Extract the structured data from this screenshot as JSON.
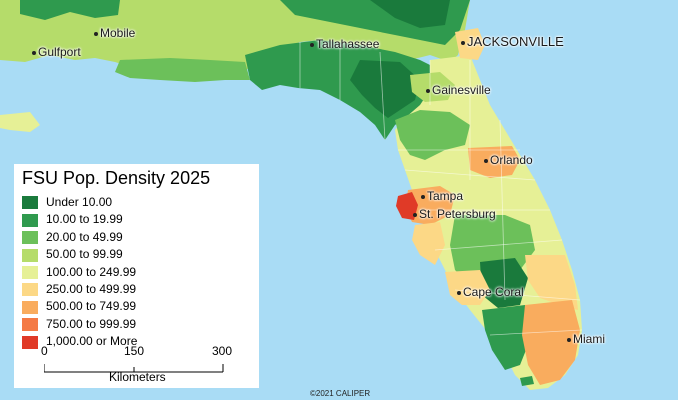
{
  "map": {
    "water_color": "#a9dcf5",
    "land_color": "#bfe27a",
    "cities": {
      "gulfport": "Gulfport",
      "mobile": "Mobile",
      "tallahassee": "Tallahassee",
      "jacksonville": "JACKSONVILLE",
      "gainesville": "Gainesville",
      "orlando": "Orlando",
      "tampa": "Tampa",
      "st_petersburg": "St. Petersburg",
      "cape_coral": "Cape Coral",
      "miami": "Miami"
    }
  },
  "legend": {
    "title": "FSU Pop. Density 2025",
    "items": [
      {
        "label": "Under 10.00",
        "color": "#1a7a3c"
      },
      {
        "label": "10.00 to 19.99",
        "color": "#2f9a4e"
      },
      {
        "label": "20.00 to 49.99",
        "color": "#6cc05a"
      },
      {
        "label": "50.00 to 99.99",
        "color": "#b5dc6a"
      },
      {
        "label": "100.00 to 249.99",
        "color": "#e6f096"
      },
      {
        "label": "250.00 to 499.99",
        "color": "#fcd886"
      },
      {
        "label": "500.00 to 749.99",
        "color": "#f9ac5e"
      },
      {
        "label": "750.00 to 999.99",
        "color": "#f47a45"
      },
      {
        "label": "1,000.00 or More",
        "color": "#e03a27"
      }
    ],
    "scale": {
      "ticks": [
        "0",
        "150",
        "300"
      ],
      "unit": "Kilometers"
    }
  },
  "credit": "©2021 CALIPER"
}
